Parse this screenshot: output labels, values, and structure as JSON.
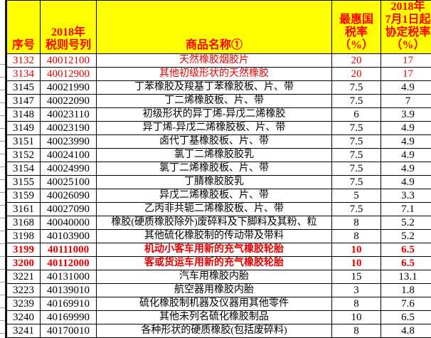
{
  "colors": {
    "header_bg": "#FFFF00",
    "header_red": "#FF0000",
    "accent_red": "#E60000",
    "grid": "#000000"
  },
  "table": {
    "headers": {
      "seq": "序号",
      "code_lines": [
        "2018年",
        "税则号列"
      ],
      "name": "商品名称①",
      "mfn_lines": [
        "最惠国",
        "税率",
        "（%）"
      ],
      "agreement_lines": [
        "2018年",
        "7月1日起",
        "协定税率",
        "（%）"
      ]
    },
    "rows": [
      {
        "seq": "3132",
        "code": "40012100",
        "name": "天然橡胶烟胶片",
        "mfn": "20",
        "agr": "17",
        "style": "red"
      },
      {
        "seq": "3134",
        "code": "40012900",
        "name": "其他初级形状的天然橡胶",
        "mfn": "20",
        "agr": "17",
        "style": "red"
      },
      {
        "seq": "3145",
        "code": "40021990",
        "name": "丁苯橡胶及羧基丁苯橡胶板、片、带",
        "mfn": "7.5",
        "agr": "4.9",
        "style": ""
      },
      {
        "seq": "3147",
        "code": "40022090",
        "name": "丁二烯橡胶板、片、带",
        "mfn": "7.5",
        "agr": "7",
        "style": ""
      },
      {
        "seq": "3148",
        "code": "40023110",
        "name": "初级形状的异丁烯-异戊二烯橡胶",
        "mfn": "6",
        "agr": "3.9",
        "style": ""
      },
      {
        "seq": "3149",
        "code": "40023190",
        "name": "异丁烯-异戊二烯橡胶板、片、带",
        "mfn": "7.5",
        "agr": "4.9",
        "style": ""
      },
      {
        "seq": "3151",
        "code": "40023990",
        "name": "卤代丁基橡胶板、片、带",
        "mfn": "7.5",
        "agr": "4.9",
        "style": ""
      },
      {
        "seq": "3152",
        "code": "40024100",
        "name": "氯丁二烯橡胶胶乳",
        "mfn": "7.5",
        "agr": "4.9",
        "style": ""
      },
      {
        "seq": "3154",
        "code": "40024990",
        "name": "氯丁二烯橡胶板、片、带",
        "mfn": "7.5",
        "agr": "4.9",
        "style": ""
      },
      {
        "seq": "3155",
        "code": "40025100",
        "name": "丁腈橡胶胶乳",
        "mfn": "7.5",
        "agr": "4.9",
        "style": ""
      },
      {
        "seq": "3159",
        "code": "40026090",
        "name": "异戊二烯橡胶板、片、带",
        "mfn": "5",
        "agr": "3.3",
        "style": ""
      },
      {
        "seq": "3161",
        "code": "40027090",
        "name": "乙丙非共轭二烯橡胶板、片、带",
        "mfn": "7.5",
        "agr": "7.1",
        "style": ""
      },
      {
        "seq": "3168",
        "code": "40040000",
        "name": "橡胶(硬质橡胶除外)废碎料及下脚料及其粉、粒",
        "mfn": "8",
        "agr": "5.2",
        "style": ""
      },
      {
        "seq": "3198",
        "code": "40103900",
        "name": "其他硫化橡胶制的传动带及带料",
        "mfn": "8",
        "agr": "5.2",
        "style": ""
      },
      {
        "seq": "3199",
        "code": "40111000",
        "name": "机动小客车用新的充气橡胶轮胎",
        "mfn": "10",
        "agr": "6.5",
        "style": "redbold"
      },
      {
        "seq": "3200",
        "code": "40112000",
        "name": "客或货运车用新的充气橡胶轮胎",
        "mfn": "10",
        "agr": "6.5",
        "style": "redbold"
      },
      {
        "seq": "3221",
        "code": "40131000",
        "name": "汽车用橡胶内胎",
        "mfn": "15",
        "agr": "13.1",
        "style": ""
      },
      {
        "seq": "3223",
        "code": "40139010",
        "name": "航空器用橡胶内胎",
        "mfn": "3",
        "agr": "1.8",
        "style": ""
      },
      {
        "seq": "3239",
        "code": "40169910",
        "name": "硫化橡胶制机器及仪器用其他零件",
        "mfn": "8",
        "agr": "7.6",
        "style": ""
      },
      {
        "seq": "3240",
        "code": "40169990",
        "name": "其他未列名硫化橡胶制品",
        "mfn": "10",
        "agr": "6.5",
        "style": ""
      },
      {
        "seq": "3241",
        "code": "40170010",
        "name": "各种形状的硬质橡胶(包括废碎料)",
        "mfn": "8",
        "agr": "4.8",
        "style": ""
      }
    ]
  }
}
